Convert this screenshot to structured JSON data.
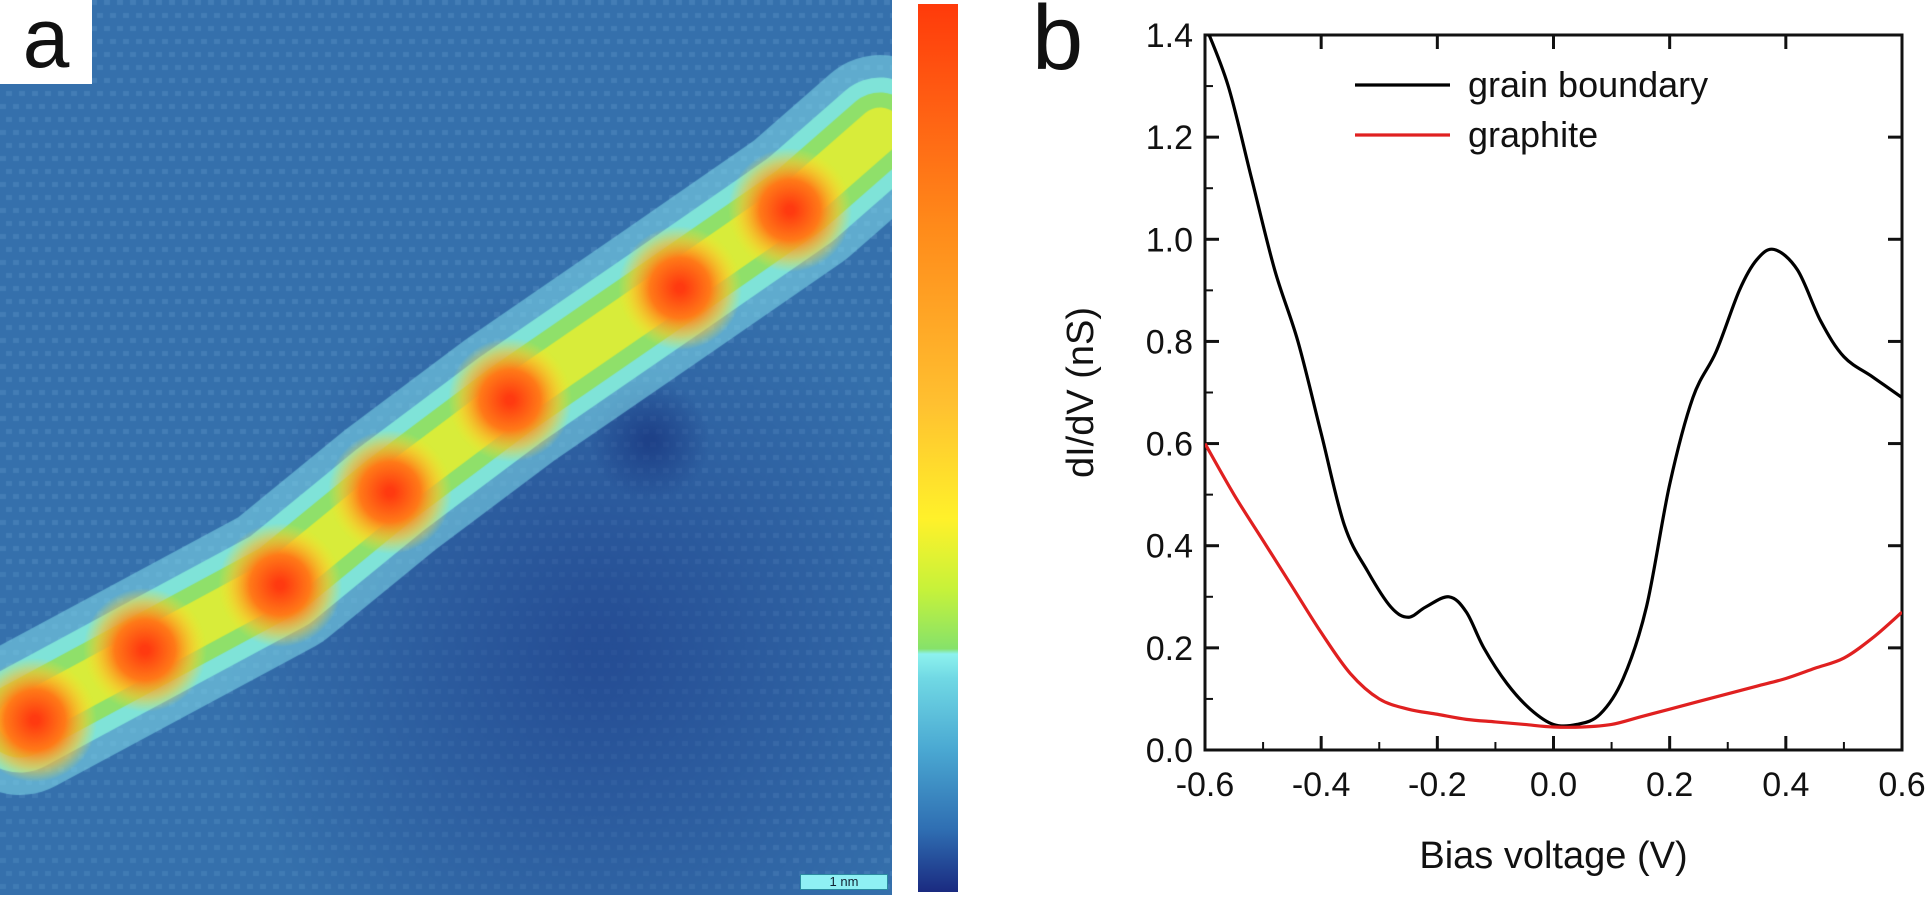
{
  "panel_a": {
    "label": "a",
    "scale_bar": "1 nm",
    "colors": {
      "background": "#3570ac",
      "low": "#1a2a80",
      "mid": "#86e26a",
      "high": "#ff4a10"
    }
  },
  "panel_b": {
    "label": "b"
  },
  "chart_data": {
    "type": "line",
    "title": "",
    "xlabel": "Bias voltage (V)",
    "ylabel": "dI/dV (nS)",
    "xlim": [
      -0.6,
      0.6
    ],
    "ylim": [
      0.0,
      1.4
    ],
    "xticks": [
      "-0.6",
      "-0.4",
      "-0.2",
      "0.0",
      "0.2",
      "0.4",
      "0.6"
    ],
    "yticks": [
      "0.0",
      "0.2",
      "0.4",
      "0.6",
      "0.8",
      "1.0",
      "1.2",
      "1.4"
    ],
    "legend_position": "top-center",
    "series": [
      {
        "name": "grain boundary",
        "color": "#000000",
        "x": [
          -0.6,
          -0.56,
          -0.52,
          -0.48,
          -0.44,
          -0.4,
          -0.36,
          -0.32,
          -0.28,
          -0.25,
          -0.22,
          -0.18,
          -0.15,
          -0.12,
          -0.08,
          -0.04,
          0.0,
          0.04,
          0.08,
          0.12,
          0.16,
          0.2,
          0.24,
          0.28,
          0.32,
          0.35,
          0.38,
          0.42,
          0.46,
          0.5,
          0.55,
          0.6
        ],
        "values": [
          1.42,
          1.3,
          1.12,
          0.94,
          0.8,
          0.62,
          0.44,
          0.35,
          0.28,
          0.26,
          0.28,
          0.3,
          0.27,
          0.2,
          0.13,
          0.08,
          0.05,
          0.05,
          0.07,
          0.14,
          0.28,
          0.52,
          0.69,
          0.78,
          0.9,
          0.96,
          0.98,
          0.94,
          0.84,
          0.77,
          0.73,
          0.69
        ]
      },
      {
        "name": "graphite",
        "color": "#e02020",
        "x": [
          -0.6,
          -0.55,
          -0.5,
          -0.45,
          -0.4,
          -0.35,
          -0.3,
          -0.25,
          -0.2,
          -0.15,
          -0.1,
          -0.05,
          0.0,
          0.05,
          0.1,
          0.15,
          0.2,
          0.25,
          0.3,
          0.35,
          0.4,
          0.45,
          0.5,
          0.55,
          0.6
        ],
        "values": [
          0.6,
          0.5,
          0.41,
          0.32,
          0.23,
          0.15,
          0.1,
          0.08,
          0.07,
          0.06,
          0.055,
          0.05,
          0.045,
          0.045,
          0.05,
          0.065,
          0.08,
          0.095,
          0.11,
          0.125,
          0.14,
          0.16,
          0.18,
          0.22,
          0.27
        ]
      }
    ]
  }
}
